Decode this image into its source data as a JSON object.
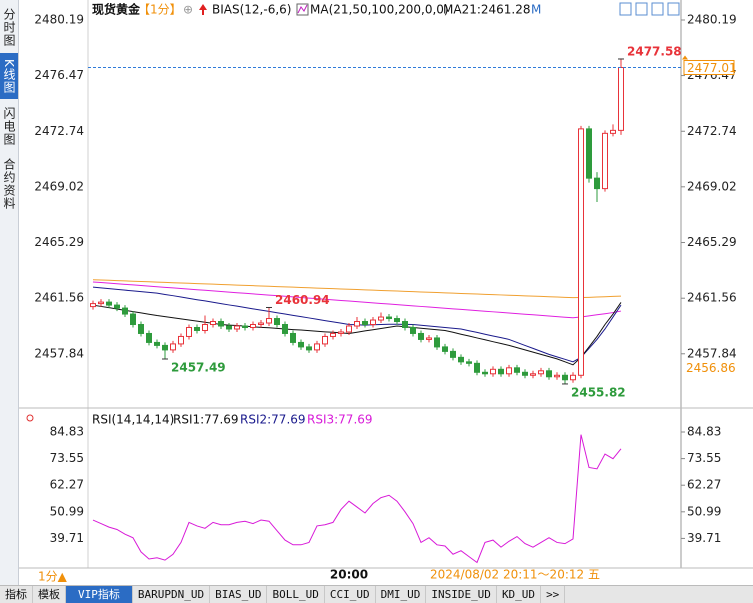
{
  "header": {
    "symbol": "现货黄金",
    "period": "【1分】",
    "bias": "BIAS(12,-6,6)",
    "ma": "MA(21,50,100,200,0,0)",
    "ma21": "MA21:2461.28",
    "mode": "M"
  },
  "sidebar": {
    "tabs": [
      "分时图",
      "K线图",
      "闪电图",
      "合约资料"
    ]
  },
  "footer": {
    "period": "1分▲",
    "datetime": "2024/08/02 20:11～20:12 五",
    "tabs": [
      "指标",
      "模板",
      "VIP指标",
      "BARUPDN_UD",
      "BIAS_UD",
      "BOLL_UD",
      "CCI_UD",
      "DMI_UD",
      "INSIDE_UD",
      "KD_UD",
      ">>"
    ]
  },
  "chart_data": [
    {
      "type": "candlestick",
      "categories": [
        null,
        null,
        null,
        null,
        null,
        null,
        null,
        null,
        null,
        null,
        null,
        null,
        null,
        null,
        null,
        null,
        null,
        null,
        null,
        null,
        null,
        null,
        null,
        null,
        null,
        null,
        null,
        null,
        null,
        null,
        null,
        null,
        "20:00",
        null,
        null,
        null,
        null,
        null,
        null,
        null,
        null,
        null,
        null,
        null,
        null,
        null,
        null,
        null,
        null,
        null,
        null,
        null,
        null,
        null,
        null,
        null,
        null,
        null,
        null,
        null,
        null,
        null,
        null,
        null,
        null,
        null,
        null
      ],
      "open": [
        2461.0,
        2461.2,
        2461.3,
        2461.1,
        2460.9,
        2460.5,
        2459.8,
        2459.2,
        2458.6,
        2458.4,
        2458.1,
        2458.5,
        2459.0,
        2459.6,
        2459.4,
        2459.8,
        2460.0,
        2459.7,
        2459.5,
        2459.7,
        2459.6,
        2459.8,
        2459.9,
        2460.2,
        2459.8,
        2459.2,
        2458.6,
        2458.3,
        2458.1,
        2458.5,
        2459.0,
        2459.2,
        2459.3,
        2459.7,
        2460.0,
        2459.8,
        2460.1,
        2460.3,
        2460.2,
        2460.0,
        2459.6,
        2459.2,
        2458.8,
        2458.9,
        2458.3,
        2458.0,
        2457.6,
        2457.3,
        2457.2,
        2456.6,
        2456.5,
        2456.8,
        2456.5,
        2456.9,
        2456.6,
        2456.4,
        2456.5,
        2456.7,
        2456.3,
        2456.4,
        2456.1,
        2456.4,
        2472.9,
        2469.6,
        2468.9,
        2472.6,
        2472.8
      ],
      "high": [
        2461.4,
        2461.5,
        2461.5,
        2461.3,
        2461.1,
        2460.7,
        2460.0,
        2459.4,
        2458.8,
        2458.6,
        2458.7,
        2459.2,
        2459.8,
        2459.8,
        2460.4,
        2460.2,
        2460.2,
        2459.9,
        2459.9,
        2459.9,
        2460.0,
        2460.1,
        2460.94,
        2460.4,
        2460.0,
        2459.4,
        2458.8,
        2458.5,
        2458.7,
        2459.2,
        2459.4,
        2459.5,
        2459.9,
        2460.3,
        2460.2,
        2460.3,
        2460.6,
        2460.5,
        2460.4,
        2460.2,
        2459.8,
        2459.4,
        2459.1,
        2459.1,
        2458.5,
        2458.2,
        2457.8,
        2457.5,
        2457.4,
        2456.8,
        2457.0,
        2457.0,
        2457.1,
        2457.1,
        2456.8,
        2456.7,
        2456.9,
        2456.9,
        2456.6,
        2456.6,
        2456.6,
        2473.1,
        2473.1,
        2470.0,
        2472.8,
        2473.2,
        2477.58
      ],
      "low": [
        2460.8,
        2461.0,
        2460.9,
        2460.7,
        2460.3,
        2459.6,
        2459.0,
        2458.4,
        2458.2,
        2457.49,
        2457.9,
        2458.3,
        2458.8,
        2459.2,
        2459.2,
        2459.6,
        2459.5,
        2459.3,
        2459.3,
        2459.4,
        2459.4,
        2459.6,
        2459.7,
        2459.6,
        2459.0,
        2458.4,
        2458.1,
        2457.9,
        2457.9,
        2458.3,
        2458.8,
        2459.0,
        2459.1,
        2459.5,
        2459.6,
        2459.6,
        2459.9,
        2460.0,
        2459.8,
        2459.4,
        2459.0,
        2458.6,
        2458.6,
        2458.1,
        2457.8,
        2457.4,
        2457.1,
        2457.0,
        2456.4,
        2456.3,
        2456.3,
        2456.3,
        2456.3,
        2456.4,
        2456.2,
        2456.2,
        2456.3,
        2456.1,
        2456.1,
        2455.82,
        2455.9,
        2456.2,
        2469.3,
        2468.0,
        2468.7,
        2472.4,
        2472.5
      ],
      "close": [
        2461.2,
        2461.3,
        2461.1,
        2460.9,
        2460.5,
        2459.8,
        2459.2,
        2458.6,
        2458.4,
        2458.1,
        2458.5,
        2459.0,
        2459.6,
        2459.4,
        2459.8,
        2460.0,
        2459.7,
        2459.5,
        2459.7,
        2459.6,
        2459.8,
        2459.9,
        2460.2,
        2459.8,
        2459.2,
        2458.6,
        2458.3,
        2458.1,
        2458.5,
        2459.0,
        2459.2,
        2459.3,
        2459.7,
        2460.0,
        2459.8,
        2460.1,
        2460.3,
        2460.2,
        2460.0,
        2459.6,
        2459.2,
        2458.8,
        2458.9,
        2458.3,
        2458.0,
        2457.6,
        2457.3,
        2457.2,
        2456.6,
        2456.5,
        2456.8,
        2456.5,
        2456.9,
        2456.6,
        2456.4,
        2456.5,
        2456.7,
        2456.3,
        2456.4,
        2456.1,
        2456.4,
        2472.9,
        2469.6,
        2468.9,
        2472.6,
        2472.8,
        2477.01
      ],
      "up_color": "#e8333a",
      "down_color": "#2e9b3c",
      "last_price_color": "#2f7bd9",
      "price_marker": 2456.86,
      "marker_color": "#f0900a",
      "series": [
        {
          "color": "#f0a030",
          "values": [
            2462.8,
            2462.78,
            2462.76,
            2462.74,
            2462.72,
            2462.7,
            2462.68,
            2462.66,
            2462.64,
            2462.62,
            2462.6,
            2462.58,
            2462.56,
            2462.54,
            2462.52,
            2462.5,
            2462.48,
            2462.46,
            2462.44,
            2462.42,
            2462.4,
            2462.38,
            2462.36,
            2462.34,
            2462.32,
            2462.3,
            2462.28,
            2462.26,
            2462.24,
            2462.22,
            2462.2,
            2462.18,
            2462.16,
            2462.14,
            2462.12,
            2462.1,
            2462.08,
            2462.06,
            2462.04,
            2462.02,
            2462.0,
            2461.98,
            2461.96,
            2461.94,
            2461.92,
            2461.9,
            2461.88,
            2461.86,
            2461.84,
            2461.82,
            2461.8,
            2461.78,
            2461.76,
            2461.74,
            2461.72,
            2461.7,
            2461.68,
            2461.66,
            2461.64,
            2461.62,
            2461.6,
            2461.61,
            2461.62,
            2461.64,
            2461.66,
            2461.68,
            2461.7
          ]
        },
        {
          "color": "#e020e0",
          "values": [
            2462.65,
            2462.61,
            2462.57,
            2462.53,
            2462.49,
            2462.45,
            2462.41,
            2462.37,
            2462.33,
            2462.29,
            2462.25,
            2462.21,
            2462.17,
            2462.13,
            2462.09,
            2462.05,
            2462.01,
            2461.97,
            2461.93,
            2461.89,
            2461.85,
            2461.81,
            2461.77,
            2461.73,
            2461.69,
            2461.65,
            2461.61,
            2461.57,
            2461.53,
            2461.49,
            2461.45,
            2461.41,
            2461.37,
            2461.33,
            2461.29,
            2461.25,
            2461.21,
            2461.17,
            2461.13,
            2461.09,
            2461.05,
            2461.01,
            2460.97,
            2460.93,
            2460.89,
            2460.85,
            2460.81,
            2460.77,
            2460.73,
            2460.69,
            2460.65,
            2460.61,
            2460.57,
            2460.53,
            2460.49,
            2460.45,
            2460.41,
            2460.37,
            2460.33,
            2460.29,
            2460.25,
            2460.3,
            2460.38,
            2460.45,
            2460.52,
            2460.6,
            2460.7
          ]
        },
        {
          "color": "#1a1a8c",
          "values": [
            2462.3,
            2462.25,
            2462.2,
            2462.15,
            2462.1,
            2462.05,
            2462.0,
            2461.95,
            2461.9,
            2461.81,
            2461.73,
            2461.64,
            2461.55,
            2461.46,
            2461.38,
            2461.29,
            2461.2,
            2461.11,
            2461.03,
            2460.94,
            2460.85,
            2460.76,
            2460.68,
            2460.59,
            2460.5,
            2460.41,
            2460.33,
            2460.24,
            2460.15,
            2460.06,
            2459.98,
            2459.89,
            2459.8,
            2459.78,
            2459.76,
            2459.78,
            2459.8,
            2459.82,
            2459.82,
            2459.81,
            2459.8,
            2459.75,
            2459.7,
            2459.65,
            2459.6,
            2459.55,
            2459.5,
            2459.38,
            2459.27,
            2459.15,
            2459.03,
            2458.92,
            2458.8,
            2458.6,
            2458.4,
            2458.2,
            2458.0,
            2457.8,
            2457.63,
            2457.47,
            2457.3,
            2457.6,
            2458.2,
            2458.8,
            2459.5,
            2460.3,
            2461.1
          ]
        },
        {
          "color": "#111111",
          "values": [
            2461.1,
            2461.01,
            2460.93,
            2460.84,
            2460.75,
            2460.66,
            2460.58,
            2460.49,
            2460.4,
            2460.33,
            2460.25,
            2460.18,
            2460.1,
            2460.03,
            2459.95,
            2459.88,
            2459.8,
            2459.76,
            2459.73,
            2459.69,
            2459.65,
            2459.61,
            2459.58,
            2459.54,
            2459.5,
            2459.46,
            2459.43,
            2459.39,
            2459.35,
            2459.31,
            2459.28,
            2459.24,
            2459.2,
            2459.28,
            2459.37,
            2459.45,
            2459.53,
            2459.62,
            2459.7,
            2459.65,
            2459.6,
            2459.55,
            2459.5,
            2459.45,
            2459.4,
            2459.28,
            2459.15,
            2459.03,
            2458.9,
            2458.78,
            2458.65,
            2458.53,
            2458.4,
            2458.25,
            2458.1,
            2457.95,
            2457.8,
            2457.65,
            2457.5,
            2457.3,
            2457.1,
            2457.6,
            2458.3,
            2459.0,
            2459.8,
            2460.5,
            2461.28
          ]
        }
      ],
      "ylim": [
        2454.41,
        2480.86
      ],
      "yticks": [
        2457.84,
        2461.56,
        2465.29,
        2469.02,
        2472.74,
        2476.47,
        2480.19
      ]
    },
    {
      "type": "line",
      "title_items": [
        "RSI(14,14,14)",
        "RSI1:77.69",
        "RSI2:77.69",
        "RSI3:77.69"
      ],
      "series": [
        {
          "color": "#d81ad8",
          "values": [
            47.5,
            46.0,
            44.5,
            43.5,
            41.5,
            40.0,
            34.0,
            31.0,
            31.5,
            30.5,
            33.0,
            38.0,
            46.5,
            45.0,
            44.0,
            46.5,
            45.5,
            45.5,
            46.5,
            47.0,
            46.0,
            47.5,
            47.0,
            43.0,
            39.0,
            37.0,
            37.0,
            38.0,
            45.0,
            45.5,
            46.5,
            52.0,
            55.5,
            53.0,
            50.5,
            54.5,
            57.0,
            58.0,
            55.5,
            51.0,
            46.0,
            38.0,
            40.0,
            37.0,
            36.5,
            33.0,
            34.5,
            32.0,
            29.5,
            38.0,
            39.0,
            36.0,
            38.5,
            40.5,
            37.5,
            36.0,
            38.0,
            40.0,
            38.0,
            37.5,
            39.5,
            83.7,
            69.8,
            69.2,
            75.5,
            73.5,
            77.69
          ]
        }
      ],
      "ylim": [
        27.59,
        92.04
      ],
      "yticks": [
        39.71,
        50.99,
        62.27,
        73.55,
        84.83
      ]
    }
  ]
}
